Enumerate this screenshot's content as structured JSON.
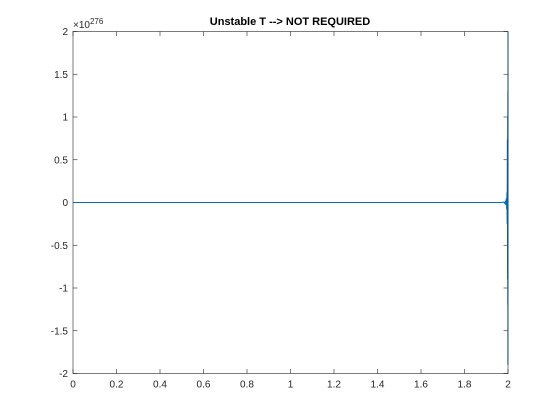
{
  "chart_data": {
    "type": "line",
    "title": "Unstable T --> NOT REQUIRED",
    "xlabel": "",
    "ylabel": "",
    "xlim": [
      0,
      2
    ],
    "ylim": [
      -2,
      2
    ],
    "y_exponent_base": "×10",
    "y_exponent_power": "276",
    "x_ticks": [
      "0",
      "0.2",
      "0.4",
      "0.6",
      "0.8",
      "1",
      "1.2",
      "1.4",
      "1.6",
      "1.8",
      "2"
    ],
    "y_ticks": [
      "-2",
      "-1.5",
      "-1",
      "-0.5",
      "0",
      "0.5",
      "1",
      "1.5",
      "2"
    ],
    "grid": false,
    "line_color": "#0072BD",
    "series": [
      {
        "x": [
          0,
          0.5,
          1.0,
          1.5,
          1.9,
          1.97,
          1.98,
          1.985,
          1.988,
          1.99,
          1.992,
          1.994,
          1.995,
          1.996,
          1.997,
          1.998,
          1.9985,
          1.999,
          1.9993,
          1.9996,
          2.0
        ],
        "values": [
          0,
          0,
          0,
          0,
          0,
          0,
          0.005,
          -0.01,
          0.02,
          -0.03,
          0.05,
          -0.08,
          0.12,
          -0.25,
          0.74,
          -0.9,
          1.0,
          -1.2,
          1.3,
          -1.9,
          2.0
        ]
      }
    ]
  }
}
